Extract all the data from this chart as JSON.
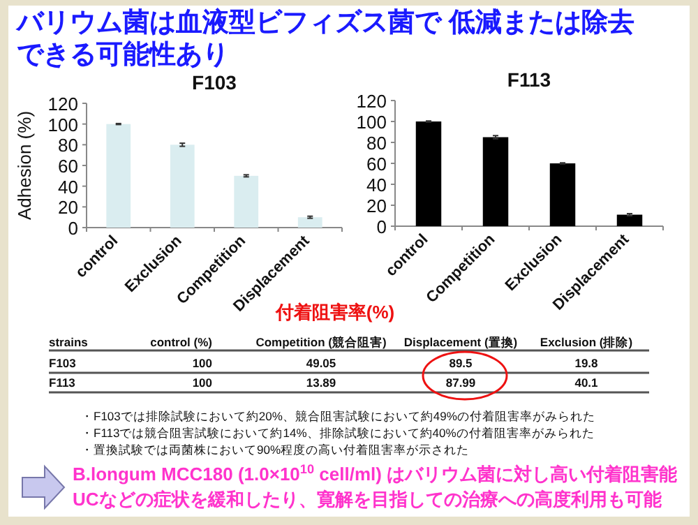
{
  "chart_data": [
    {
      "type": "bar",
      "title": "F103",
      "ylabel": "Adhesion (%)",
      "categories": [
        "control",
        "Exclusion",
        "Competition",
        "Displacement"
      ],
      "series": [
        {
          "color": "#daedf0",
          "values": [
            100,
            80,
            50,
            10
          ],
          "errors": [
            0.5,
            1.5,
            1,
            1
          ]
        }
      ],
      "ylim": [
        0,
        120
      ],
      "yticks": [
        0,
        20,
        40,
        60,
        80,
        100,
        120
      ],
      "grid": false
    },
    {
      "type": "bar",
      "title": "F113",
      "categories": [
        "control",
        "Competition",
        "Exclusion",
        "Displacement"
      ],
      "series": [
        {
          "color": "#000000",
          "values": [
            100,
            85,
            60,
            11
          ],
          "errors": [
            0.5,
            1.5,
            0.5,
            1
          ]
        }
      ],
      "ylim": [
        0,
        120
      ],
      "yticks": [
        0,
        20,
        40,
        60,
        80,
        100,
        120
      ],
      "grid": false
    },
    {
      "type": "other",
      "title": "付着阻害率(%)",
      "annotations": [
        "バリウム菌は血液型ビフィズス菌で 低減または除去",
        "できる可能性あり",
        "strains",
        "control (%)",
        "Competition (競合阻害)",
        "Displacement (置換)",
        "Exclusion (排除)",
        "F103",
        "100",
        "49.05",
        "89.5",
        "19.8",
        "F113",
        "100",
        "13.89",
        "87.99",
        "40.1",
        "・F103では排除試験において約20%、競合阻害試験において約49%の付着阻害率がみられた",
        "・F113では競合阻害試験において約14%、排除試験において約40%の付着阻害率がみられた",
        "・置換試験では両菌株において90%程度の高い付着阻害率が示された",
        "B.longum MCC180 (1.0×10$^{10}$ cell/ml) はバリウム菌に対し高い付着阻害能",
        "UCなどの症状を緩和したり、寛解を目指しての治療への高度利用も可能"
      ]
    }
  ]
}
